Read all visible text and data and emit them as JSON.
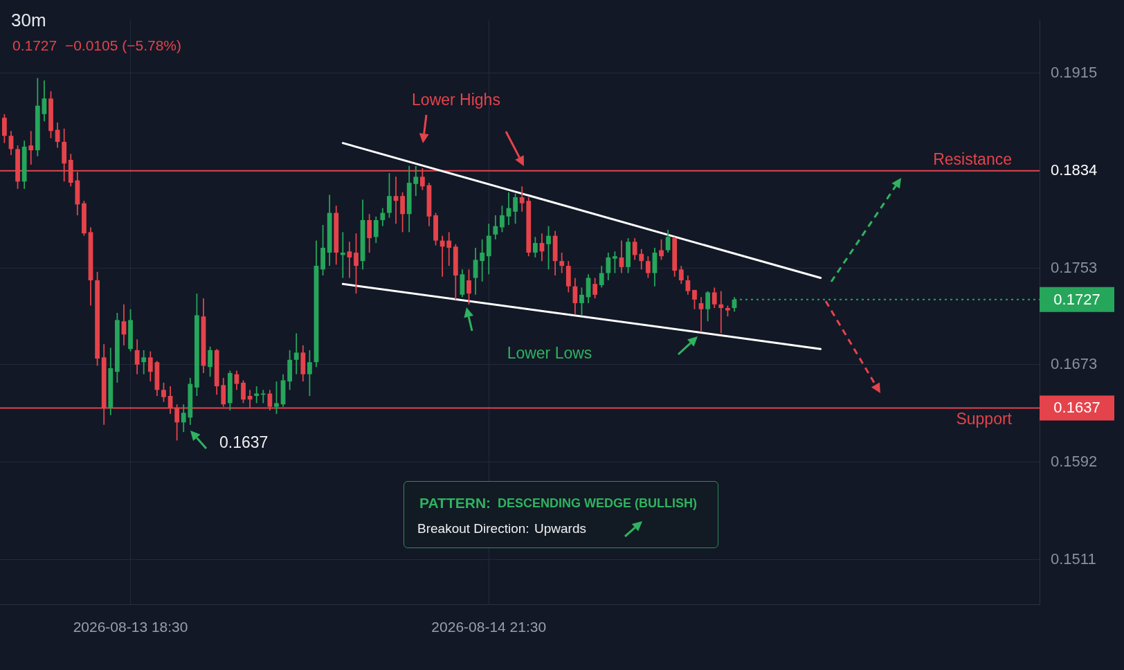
{
  "chart_data": {
    "type": "candlestick",
    "title": "30m",
    "subtitle": "0.1727  −0.0105 (−5.78%)",
    "x": [
      "2026-08-13T09:00",
      "2026-08-13T09:30",
      "2026-08-13T10:00",
      "2026-08-13T10:30",
      "2026-08-13T11:00",
      "2026-08-13T11:30",
      "2026-08-13T12:00",
      "2026-08-13T12:30",
      "2026-08-13T13:00",
      "2026-08-13T13:30",
      "2026-08-13T14:00",
      "2026-08-13T14:30",
      "2026-08-13T15:00",
      "2026-08-13T15:30",
      "2026-08-13T16:00",
      "2026-08-13T16:30",
      "2026-08-13T17:00",
      "2026-08-13T17:30",
      "2026-08-13T18:00",
      "2026-08-13T18:30",
      "2026-08-13T19:00",
      "2026-08-13T19:30",
      "2026-08-13T20:00",
      "2026-08-13T20:30",
      "2026-08-13T21:00",
      "2026-08-13T21:30",
      "2026-08-13T22:00",
      "2026-08-13T22:30",
      "2026-08-13T23:00",
      "2026-08-13T23:30",
      "2026-08-14T00:00",
      "2026-08-14T00:30",
      "2026-08-14T01:00",
      "2026-08-14T01:30",
      "2026-08-14T02:00",
      "2026-08-14T02:30",
      "2026-08-14T03:00",
      "2026-08-14T03:30",
      "2026-08-14T04:00",
      "2026-08-14T04:30",
      "2026-08-14T05:00",
      "2026-08-14T05:30",
      "2026-08-14T06:00",
      "2026-08-14T06:30",
      "2026-08-14T07:00",
      "2026-08-14T07:30",
      "2026-08-14T08:00",
      "2026-08-14T08:30",
      "2026-08-14T09:00",
      "2026-08-14T09:30",
      "2026-08-14T10:00",
      "2026-08-14T10:30",
      "2026-08-14T11:00",
      "2026-08-14T11:30",
      "2026-08-14T12:00",
      "2026-08-14T12:30",
      "2026-08-14T13:00",
      "2026-08-14T13:30",
      "2026-08-14T14:00",
      "2026-08-14T14:30",
      "2026-08-14T15:00",
      "2026-08-14T15:30",
      "2026-08-14T16:00",
      "2026-08-14T16:30",
      "2026-08-14T17:00",
      "2026-08-14T17:30",
      "2026-08-14T18:00",
      "2026-08-14T18:30",
      "2026-08-14T19:00",
      "2026-08-14T19:30",
      "2026-08-14T20:00",
      "2026-08-14T20:30",
      "2026-08-14T21:00",
      "2026-08-14T21:30",
      "2026-08-14T22:00",
      "2026-08-14T22:30",
      "2026-08-14T23:00",
      "2026-08-14T23:30",
      "2026-08-15T00:00",
      "2026-08-15T00:30",
      "2026-08-15T01:00",
      "2026-08-15T01:30",
      "2026-08-15T02:00",
      "2026-08-15T02:30",
      "2026-08-15T03:00",
      "2026-08-15T03:30",
      "2026-08-15T04:00",
      "2026-08-15T04:30",
      "2026-08-15T05:00",
      "2026-08-15T05:30",
      "2026-08-15T06:00",
      "2026-08-15T06:30",
      "2026-08-15T07:00",
      "2026-08-15T07:30",
      "2026-08-15T08:00",
      "2026-08-15T08:30",
      "2026-08-15T09:00",
      "2026-08-15T09:30",
      "2026-08-15T10:00",
      "2026-08-15T10:30",
      "2026-08-15T11:00",
      "2026-08-15T11:30",
      "2026-08-15T12:00",
      "2026-08-15T12:30",
      "2026-08-15T13:00",
      "2026-08-15T13:30",
      "2026-08-15T14:00",
      "2026-08-15T14:30",
      "2026-08-15T15:00",
      "2026-08-15T15:30",
      "2026-08-15T16:00"
    ],
    "ohlc": [
      [
        0.1878,
        0.1881,
        0.1857,
        0.1863
      ],
      [
        0.1863,
        0.1867,
        0.1847,
        0.1852
      ],
      [
        0.1852,
        0.1855,
        0.1819,
        0.1825
      ],
      [
        0.1825,
        0.1859,
        0.1819,
        0.1854
      ],
      [
        0.1855,
        0.1867,
        0.1839,
        0.1851
      ],
      [
        0.1851,
        0.1911,
        0.1846,
        0.1888
      ],
      [
        0.1881,
        0.1909,
        0.1875,
        0.1894
      ],
      [
        0.1894,
        0.19,
        0.1861,
        0.1867
      ],
      [
        0.1868,
        0.1874,
        0.1853,
        0.1858
      ],
      [
        0.1858,
        0.1869,
        0.1825,
        0.184
      ],
      [
        0.1843,
        0.1848,
        0.1821,
        0.1824
      ],
      [
        0.1826,
        0.1833,
        0.1797,
        0.1806
      ],
      [
        0.1807,
        0.1809,
        0.178,
        0.1782
      ],
      [
        0.1783,
        0.1787,
        0.1722,
        0.1743
      ],
      [
        0.1743,
        0.175,
        0.1672,
        0.1678
      ],
      [
        0.1679,
        0.169,
        0.1623,
        0.1637
      ],
      [
        0.1637,
        0.1687,
        0.1631,
        0.167
      ],
      [
        0.1667,
        0.1716,
        0.1658,
        0.171
      ],
      [
        0.1709,
        0.1723,
        0.1689,
        0.1698
      ],
      [
        0.1686,
        0.1719,
        0.1684,
        0.171
      ],
      [
        0.1685,
        0.1694,
        0.1665,
        0.1673
      ],
      [
        0.1675,
        0.1685,
        0.1665,
        0.1679
      ],
      [
        0.1679,
        0.1684,
        0.1659,
        0.1667
      ],
      [
        0.1675,
        0.1676,
        0.1647,
        0.1652
      ],
      [
        0.1652,
        0.1658,
        0.1642,
        0.1646
      ],
      [
        0.1647,
        0.1655,
        0.1632,
        0.1637
      ],
      [
        0.1637,
        0.164,
        0.161,
        0.1625
      ],
      [
        0.1625,
        0.164,
        0.1617,
        0.1633
      ],
      [
        0.1629,
        0.1662,
        0.1623,
        0.1657
      ],
      [
        0.1654,
        0.1732,
        0.1647,
        0.1714
      ],
      [
        0.1713,
        0.1728,
        0.1666,
        0.1672
      ],
      [
        0.1671,
        0.1688,
        0.1663,
        0.1685
      ],
      [
        0.1685,
        0.1686,
        0.1648,
        0.1655
      ],
      [
        0.1656,
        0.1662,
        0.1638,
        0.164
      ],
      [
        0.1641,
        0.1668,
        0.1635,
        0.1666
      ],
      [
        0.1665,
        0.1668,
        0.1652,
        0.1657
      ],
      [
        0.1658,
        0.166,
        0.1641,
        0.1644
      ],
      [
        0.1647,
        0.1652,
        0.1637,
        0.1644
      ],
      [
        0.1647,
        0.1655,
        0.1641,
        0.1649
      ],
      [
        0.1648,
        0.1652,
        0.1641,
        0.1649
      ],
      [
        0.1649,
        0.1652,
        0.1635,
        0.1638
      ],
      [
        0.1638,
        0.1659,
        0.1632,
        0.1641
      ],
      [
        0.164,
        0.1665,
        0.1638,
        0.166
      ],
      [
        0.1659,
        0.1685,
        0.1652,
        0.1677
      ],
      [
        0.1677,
        0.1699,
        0.1665,
        0.1683
      ],
      [
        0.1683,
        0.1689,
        0.1659,
        0.1665
      ],
      [
        0.1665,
        0.1685,
        0.1647,
        0.1675
      ],
      [
        0.1675,
        0.1776,
        0.1671,
        0.1755
      ],
      [
        0.1752,
        0.1789,
        0.1747,
        0.177
      ],
      [
        0.1766,
        0.1814,
        0.1755,
        0.1799
      ],
      [
        0.1799,
        0.1805,
        0.1756,
        0.1766
      ],
      [
        0.1764,
        0.1783,
        0.1745,
        0.1766
      ],
      [
        0.1767,
        0.1775,
        0.1745,
        0.1762
      ],
      [
        0.1766,
        0.1782,
        0.1732,
        0.1755
      ],
      [
        0.1759,
        0.181,
        0.1752,
        0.1793
      ],
      [
        0.1793,
        0.1798,
        0.1766,
        0.1778
      ],
      [
        0.1779,
        0.1796,
        0.1774,
        0.1793
      ],
      [
        0.1793,
        0.1803,
        0.1788,
        0.1799
      ],
      [
        0.1799,
        0.1832,
        0.1795,
        0.1813
      ],
      [
        0.1813,
        0.1829,
        0.179,
        0.1809
      ],
      [
        0.1813,
        0.1816,
        0.1783,
        0.1798
      ],
      [
        0.1798,
        0.1838,
        0.1783,
        0.1824
      ],
      [
        0.1823,
        0.1838,
        0.1813,
        0.1829
      ],
      [
        0.1829,
        0.1836,
        0.1818,
        0.1821
      ],
      [
        0.1822,
        0.1824,
        0.1788,
        0.1796
      ],
      [
        0.1797,
        0.1799,
        0.1772,
        0.1776
      ],
      [
        0.1776,
        0.178,
        0.1746,
        0.1771
      ],
      [
        0.1776,
        0.1783,
        0.1755,
        0.177
      ],
      [
        0.1771,
        0.1773,
        0.1727,
        0.1747
      ],
      [
        0.1731,
        0.1752,
        0.1729,
        0.1748
      ],
      [
        0.1743,
        0.1752,
        0.1723,
        0.1732
      ],
      [
        0.1745,
        0.177,
        0.1731,
        0.176
      ],
      [
        0.1759,
        0.1777,
        0.1742,
        0.1766
      ],
      [
        0.1763,
        0.179,
        0.1748,
        0.178
      ],
      [
        0.1781,
        0.1797,
        0.1777,
        0.1788
      ],
      [
        0.1787,
        0.1805,
        0.1783,
        0.1797
      ],
      [
        0.1796,
        0.1816,
        0.1789,
        0.1803
      ],
      [
        0.18,
        0.1815,
        0.179,
        0.1812
      ],
      [
        0.1812,
        0.1821,
        0.18,
        0.1807
      ],
      [
        0.1809,
        0.1812,
        0.1763,
        0.1766
      ],
      [
        0.1766,
        0.1779,
        0.1762,
        0.1774
      ],
      [
        0.1774,
        0.1782,
        0.1759,
        0.1767
      ],
      [
        0.1773,
        0.1788,
        0.1752,
        0.178
      ],
      [
        0.178,
        0.1784,
        0.1747,
        0.1759
      ],
      [
        0.1759,
        0.1766,
        0.1749,
        0.1755
      ],
      [
        0.1755,
        0.1759,
        0.1733,
        0.1738
      ],
      [
        0.1738,
        0.1745,
        0.1715,
        0.1724
      ],
      [
        0.1724,
        0.1737,
        0.1714,
        0.1731
      ],
      [
        0.1729,
        0.1748,
        0.1724,
        0.1745
      ],
      [
        0.174,
        0.1745,
        0.1728,
        0.1731
      ],
      [
        0.1739,
        0.1755,
        0.1737,
        0.1749
      ],
      [
        0.1749,
        0.1766,
        0.1743,
        0.1762
      ],
      [
        0.1761,
        0.1767,
        0.1749,
        0.1763
      ],
      [
        0.1762,
        0.1776,
        0.1749,
        0.1754
      ],
      [
        0.1754,
        0.1778,
        0.1749,
        0.1775
      ],
      [
        0.1775,
        0.1778,
        0.176,
        0.1764
      ],
      [
        0.1765,
        0.1769,
        0.1752,
        0.1759
      ],
      [
        0.1759,
        0.1763,
        0.1745,
        0.1749
      ],
      [
        0.1749,
        0.177,
        0.1738,
        0.1766
      ],
      [
        0.1768,
        0.1777,
        0.176,
        0.1763
      ],
      [
        0.1768,
        0.1785,
        0.1766,
        0.1779
      ],
      [
        0.1778,
        0.1779,
        0.1746,
        0.1751
      ],
      [
        0.1752,
        0.1755,
        0.174,
        0.1743
      ],
      [
        0.1743,
        0.1747,
        0.1731,
        0.1734
      ],
      [
        0.1735,
        0.1735,
        0.1719,
        0.1727
      ],
      [
        0.1724,
        0.1729,
        0.17,
        0.1719
      ],
      [
        0.1719,
        0.1734,
        0.1709,
        0.1733
      ],
      [
        0.1733,
        0.1737,
        0.172,
        0.1723
      ],
      [
        0.1723,
        0.1734,
        0.1699,
        0.172
      ],
      [
        0.172,
        0.1722,
        0.1713,
        0.1718
      ],
      [
        0.172,
        0.1729,
        0.1717,
        0.1727
      ]
    ],
    "colors": [
      "#e5434b",
      "#e5434b",
      "#e5434b",
      "#26a65b",
      "#e5434b",
      "#26a65b",
      "#26a65b",
      "#e5434b",
      "#e5434b",
      "#e5434b",
      "#e5434b",
      "#e5434b",
      "#e5434b",
      "#e5434b",
      "#e5434b",
      "#e5434b",
      "#26a65b",
      "#26a65b",
      "#e5434b",
      "#26a65b",
      "#e5434b",
      "#26a65b",
      "#e5434b",
      "#e5434b",
      "#e5434b",
      "#e5434b",
      "#e5434b",
      "#26a65b",
      "#26a65b",
      "#26a65b",
      "#e5434b",
      "#26a65b",
      "#e5434b",
      "#e5434b",
      "#26a65b",
      "#e5434b",
      "#e5434b",
      "#e5434b",
      "#26a65b",
      "#26a65b",
      "#e5434b",
      "#26a65b",
      "#26a65b",
      "#26a65b",
      "#26a65b",
      "#e5434b",
      "#26a65b",
      "#26a65b",
      "#26a65b",
      "#26a65b",
      "#e5434b",
      "#26a65b",
      "#e5434b",
      "#e5434b",
      "#26a65b",
      "#e5434b",
      "#26a65b",
      "#26a65b",
      "#26a65b",
      "#e5434b",
      "#e5434b",
      "#26a65b",
      "#26a65b",
      "#e5434b",
      "#e5434b",
      "#e5434b",
      "#e5434b",
      "#e5434b",
      "#e5434b",
      "#26a65b",
      "#e5434b",
      "#26a65b",
      "#26a65b",
      "#26a65b",
      "#26a65b",
      "#26a65b",
      "#26a65b",
      "#26a65b",
      "#e5434b",
      "#e5434b",
      "#26a65b",
      "#e5434b",
      "#26a65b",
      "#e5434b",
      "#e5434b",
      "#e5434b",
      "#e5434b",
      "#26a65b",
      "#26a65b",
      "#e5434b",
      "#26a65b",
      "#26a65b",
      "#26a65b",
      "#e5434b",
      "#26a65b",
      "#e5434b",
      "#e5434b",
      "#e5434b",
      "#26a65b",
      "#e5434b",
      "#26a65b",
      "#e5434b",
      "#e5434b",
      "#e5434b",
      "#e5434b",
      "#e5434b",
      "#26a65b",
      "#e5434b",
      "#e5434b",
      "#e5434b",
      "#26a65b"
    ],
    "series": [
      {
        "type": "line",
        "x": [
          "2026-08-14T10:30",
          "2026-08-15T22:30"
        ],
        "values": [
          0.1857,
          0.1745
        ],
        "color": "#ffffff"
      },
      {
        "type": "line",
        "x": [
          "2026-08-14T10:30",
          "2026-08-15T22:30"
        ],
        "values": [
          0.174,
          0.1686
        ],
        "color": "#ffffff"
      }
    ],
    "xlim": [
      "2026-08-13T08:40",
      "2026-08-16T15:00"
    ],
    "xticks": [
      {
        "value": "2026-08-13T18:30",
        "label": "2026-08-13 18:30"
      },
      {
        "value": "2026-08-14T21:30",
        "label": "2026-08-14 21:30"
      }
    ],
    "ylim": [
      0.1474,
      0.1959
    ],
    "yticks": [
      0.1511,
      0.1592,
      0.1673,
      0.1753,
      0.1834,
      0.1915
    ],
    "grid": true,
    "ref_lines": [
      {
        "axis": "y",
        "value": 0.1834,
        "label": "Resistance",
        "color": "#e5434b"
      },
      {
        "axis": "y",
        "value": 0.1637,
        "label": "Support",
        "color": "#e5434b"
      },
      {
        "axis": "y",
        "value": 0.1727,
        "label": "0.1727",
        "color": "#26a65b",
        "line_style": "dotted"
      }
    ],
    "annotations": [
      "Lower Highs",
      "Lower Lows",
      "0.1637",
      "PATTERN:",
      "DESCENDING WEDGE (BULLISH)",
      "Breakout Direction:",
      "Upwards"
    ]
  }
}
